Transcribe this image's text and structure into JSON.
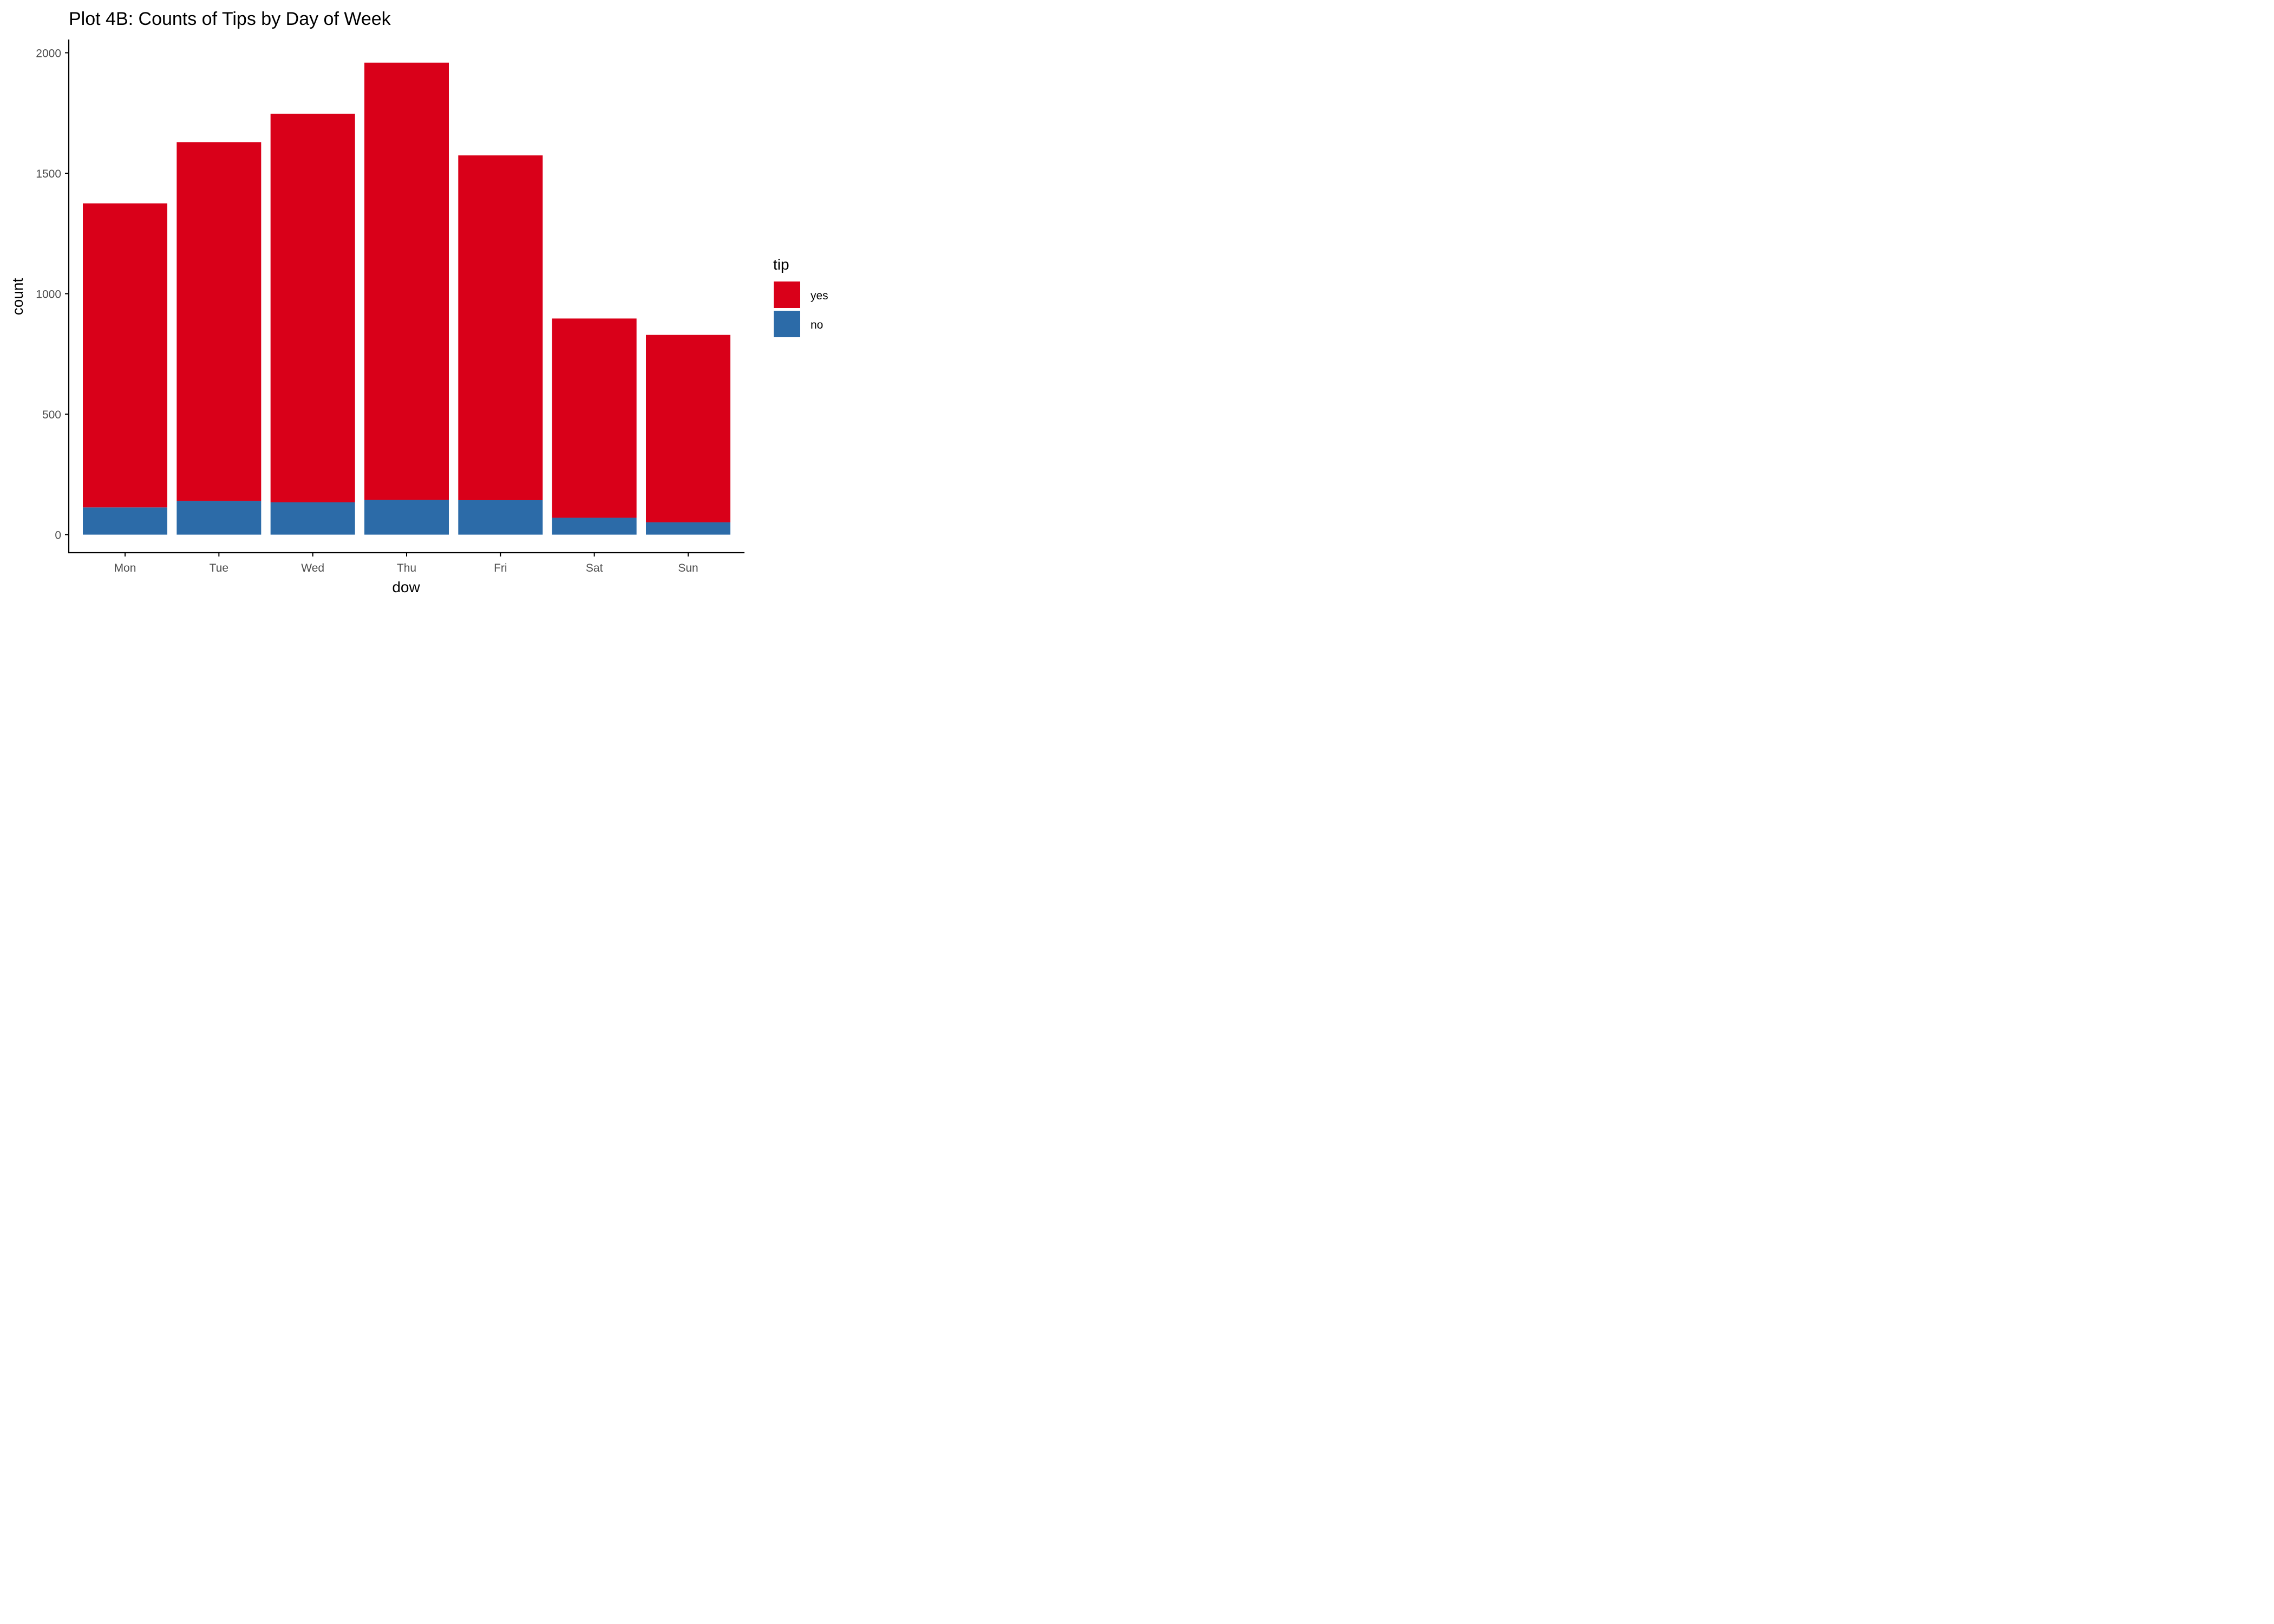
{
  "chart_data": {
    "type": "bar",
    "stacked": true,
    "title": "Plot 4B: Counts of Tips by Day of Week",
    "xlabel": "dow",
    "ylabel": "count",
    "categories": [
      "Mon",
      "Tue",
      "Wed",
      "Thu",
      "Fri",
      "Sat",
      "Sun"
    ],
    "series": [
      {
        "name": "no",
        "color": "#2c6ba8",
        "values": [
          113,
          140,
          134,
          144,
          143,
          70,
          51
        ]
      },
      {
        "name": "yes",
        "color": "#d90019",
        "values": [
          1262,
          1489,
          1613,
          1815,
          1431,
          827,
          778
        ]
      }
    ],
    "ylim": [
      -75,
      2055
    ],
    "yticks": [
      0,
      500,
      1000,
      1500,
      2000
    ],
    "grid": false,
    "legend": {
      "title": "tip",
      "position": "right",
      "order": [
        "yes",
        "no"
      ]
    }
  }
}
